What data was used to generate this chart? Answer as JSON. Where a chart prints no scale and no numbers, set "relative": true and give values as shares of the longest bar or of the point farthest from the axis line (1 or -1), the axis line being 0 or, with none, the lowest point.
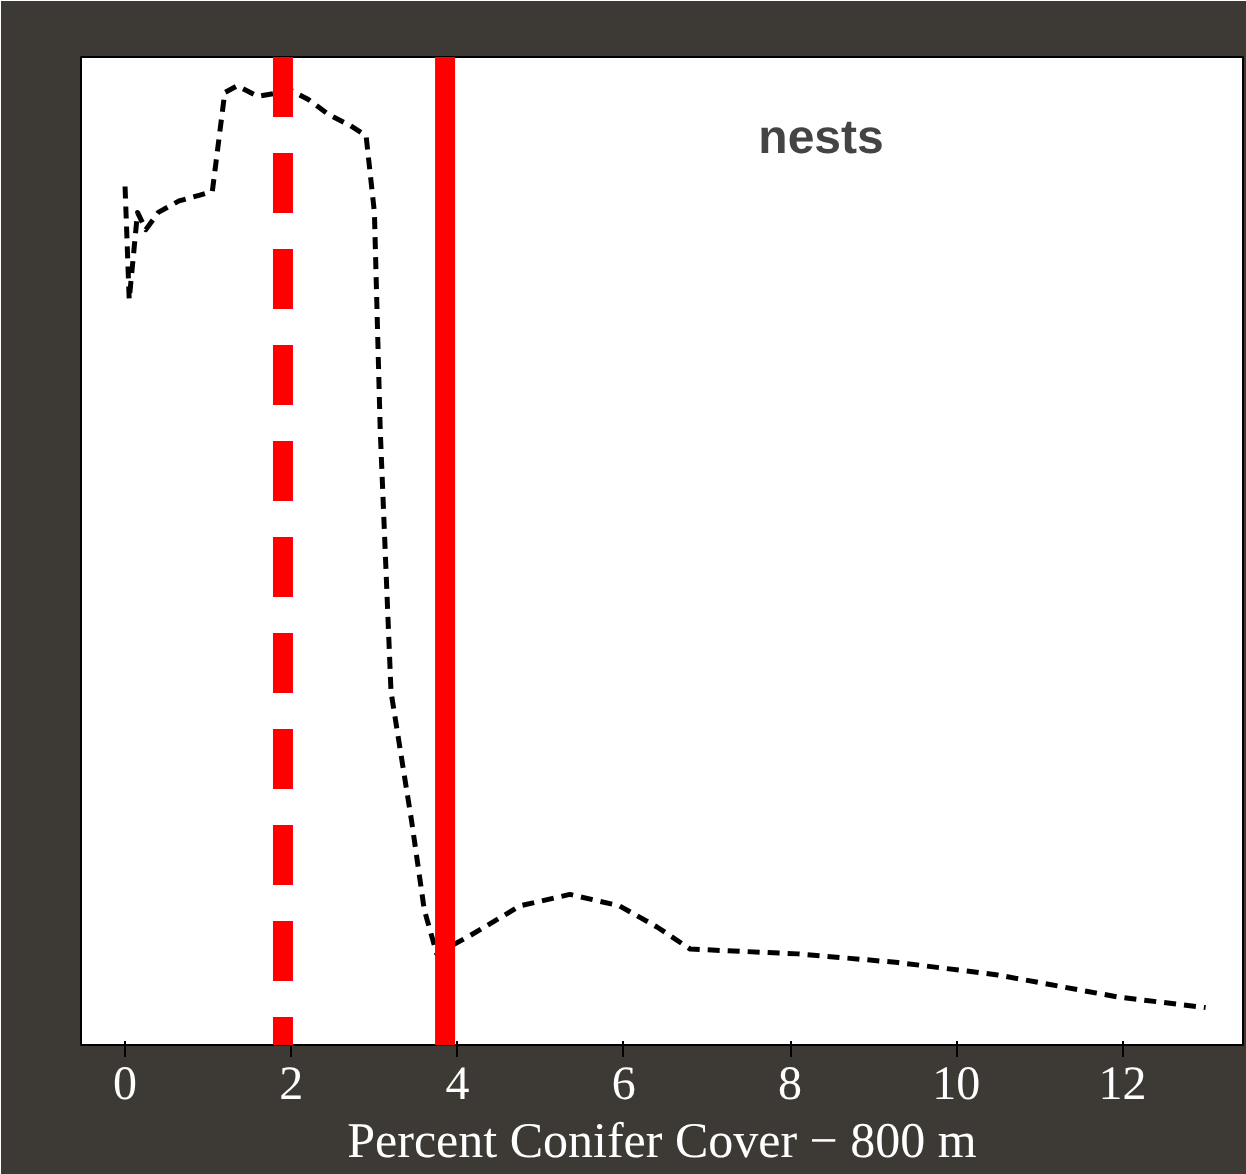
{
  "chart_data": {
    "type": "line",
    "relative": true,
    "xlabel": "Percent Conifer Cover − 800 m",
    "annotations": [
      "nests"
    ],
    "x": [
      0,
      0.05,
      0.15,
      0.25,
      0.4,
      0.65,
      0.9,
      1.05,
      1.2,
      1.35,
      1.6,
      2.0,
      2.2,
      2.45,
      2.7,
      2.9,
      3.0,
      3.07,
      3.2,
      3.45,
      3.6,
      3.75,
      4.15,
      4.75,
      5.35,
      5.95,
      6.4,
      6.8,
      8.1,
      9.3,
      10.5,
      11.95,
      13.0
    ],
    "values": [
      0.895,
      0.777,
      0.868,
      0.85,
      0.868,
      0.88,
      0.886,
      0.89,
      0.993,
      1,
      0.989,
      0.995,
      0.986,
      0.97,
      0.959,
      0.948,
      0.868,
      0.641,
      0.368,
      0.232,
      0.141,
      0.095,
      0.114,
      0.145,
      0.157,
      0.145,
      0.123,
      0.1,
      0.095,
      0.086,
      0.073,
      0.05,
      0.039
    ],
    "color": "#000000",
    "line_style": "dashed",
    "marker": "none",
    "grid": false,
    "xlim": [
      -0.53,
      13.45
    ],
    "xticks": [
      0,
      2,
      4,
      6,
      8,
      10,
      12
    ],
    "ref_lines": [
      {
        "axis": "x",
        "value": 1.9,
        "color": "#ff0000",
        "line_style": "dashed"
      },
      {
        "axis": "x",
        "value": 3.85,
        "color": "#ff0000",
        "line_style": "solid"
      }
    ]
  }
}
